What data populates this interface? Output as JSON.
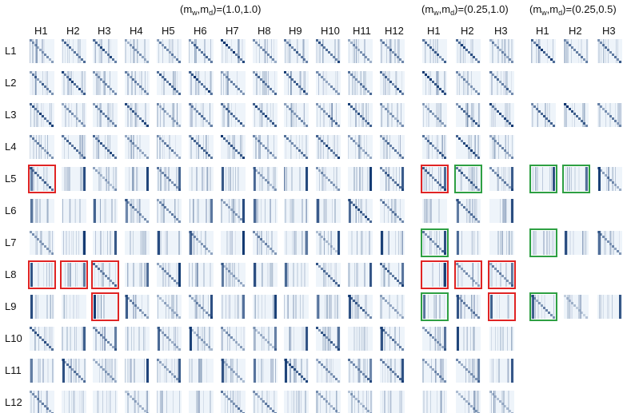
{
  "panels": [
    {
      "title_prefix": "(m",
      "sub_w": "w",
      "title_mid": ",m",
      "sub_d": "d",
      "title_suffix": ")=(1.0,1.0)",
      "heads": [
        "H1",
        "H2",
        "H3",
        "H4",
        "H5",
        "H6",
        "H7",
        "H8",
        "H9",
        "H10",
        "H11",
        "H12"
      ],
      "layers": 12
    },
    {
      "title_prefix": "(m",
      "sub_w": "w",
      "title_mid": ",m",
      "sub_d": "d",
      "title_suffix": ")=(0.25,1.0)",
      "heads": [
        "H1",
        "H2",
        "H3"
      ],
      "layers": 12
    },
    {
      "title_prefix": "(m",
      "sub_w": "w",
      "title_mid": ",m",
      "sub_d": "d",
      "title_suffix": ")=(0.25,0.5)",
      "heads": [
        "H1",
        "H2",
        "H3"
      ],
      "layers": [
        1,
        3,
        5,
        7,
        9
      ]
    }
  ],
  "row_labels": [
    "L1",
    "L2",
    "L3",
    "L4",
    "L5",
    "L6",
    "L7",
    "L8",
    "L9",
    "L10",
    "L11",
    "L12"
  ],
  "colors": {
    "red_box": "#e02424",
    "green_box": "#2ea043",
    "map_light": "#eef4fa",
    "map_dark": "#08306b"
  },
  "red_boxes": [
    {
      "panel": 0,
      "layer": 5,
      "head": 1
    },
    {
      "panel": 0,
      "layer": 8,
      "head": 1
    },
    {
      "panel": 0,
      "layer": 8,
      "head": 2
    },
    {
      "panel": 0,
      "layer": 8,
      "head": 3
    },
    {
      "panel": 0,
      "layer": 9,
      "head": 3
    },
    {
      "panel": 1,
      "layer": 5,
      "head": 1
    },
    {
      "panel": 1,
      "layer": 8,
      "head": 1
    },
    {
      "panel": 1,
      "layer": 8,
      "head": 2
    },
    {
      "panel": 1,
      "layer": 8,
      "head": 3
    },
    {
      "panel": 1,
      "layer": 9,
      "head": 3
    }
  ],
  "green_boxes": [
    {
      "panel": 1,
      "layer": 5,
      "head": 1
    },
    {
      "panel": 1,
      "layer": 5,
      "head": 2
    },
    {
      "panel": 1,
      "layer": 7,
      "head": 1
    },
    {
      "panel": 1,
      "layer": 9,
      "head": 1
    },
    {
      "panel": 2,
      "layer": 5,
      "head": 1
    },
    {
      "panel": 2,
      "layer": 5,
      "head": 2
    },
    {
      "panel": 2,
      "layer": 7,
      "head": 1
    },
    {
      "panel": 2,
      "layer": 9,
      "head": 1
    }
  ]
}
